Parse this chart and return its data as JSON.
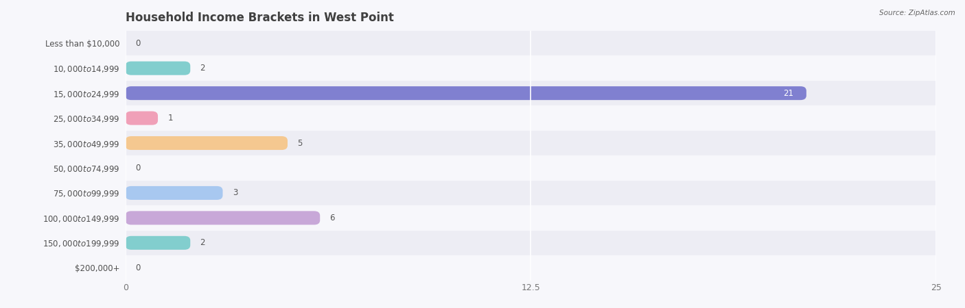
{
  "title": "Household Income Brackets in West Point",
  "source": "Source: ZipAtlas.com",
  "categories": [
    "Less than $10,000",
    "$10,000 to $14,999",
    "$15,000 to $24,999",
    "$25,000 to $34,999",
    "$35,000 to $49,999",
    "$50,000 to $74,999",
    "$75,000 to $99,999",
    "$100,000 to $149,999",
    "$150,000 to $199,999",
    "$200,000+"
  ],
  "values": [
    0,
    2,
    21,
    1,
    5,
    0,
    3,
    6,
    2,
    0
  ],
  "bar_colors": [
    "#d4b8d8",
    "#82cece",
    "#8080d0",
    "#f0a0b8",
    "#f5c890",
    "#f0a0a8",
    "#a8c8f0",
    "#c8a8d8",
    "#82cece",
    "#b8b8e8"
  ],
  "xlim": [
    0,
    25
  ],
  "xticks": [
    0,
    12.5,
    25
  ],
  "bar_height": 0.55,
  "background_color": "#f7f7fb",
  "row_colors": [
    "#ededf4",
    "#f7f7fb"
  ],
  "title_fontsize": 12,
  "label_fontsize": 8.5,
  "value_fontsize": 8.5,
  "title_color": "#404040",
  "label_color": "#505050",
  "value_color_dark": "#555555",
  "value_color_light": "#ffffff"
}
